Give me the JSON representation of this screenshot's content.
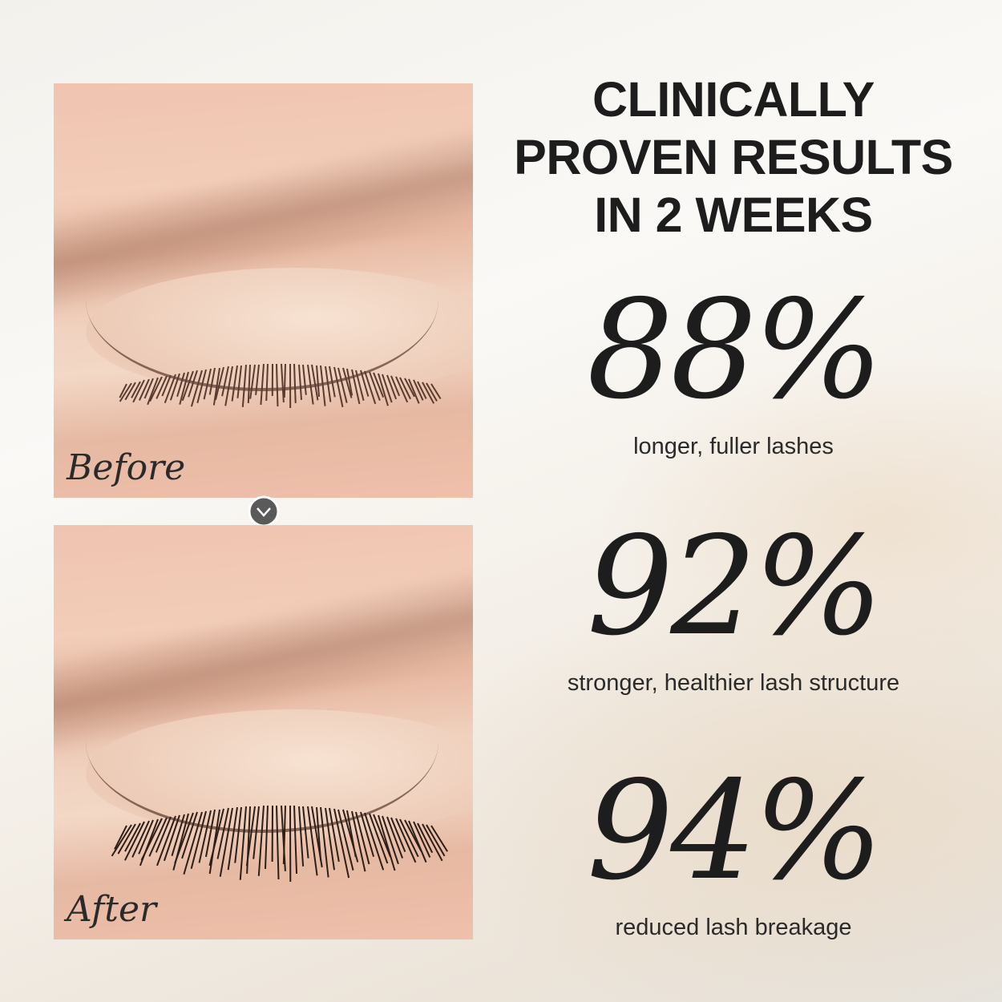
{
  "headline": {
    "line1": "CLINICALLY",
    "line2": "PROVEN RESULTS",
    "line3": "IN 2 WEEKS"
  },
  "panels": {
    "before_label": "Before",
    "after_label": "After",
    "arrow_icon": "chevron-down-icon"
  },
  "stats": [
    {
      "value": "88%",
      "caption": "longer, fuller lashes"
    },
    {
      "value": "92%",
      "caption": "stronger, healthier lash structure"
    },
    {
      "value": "94%",
      "caption": "reduced lash breakage"
    }
  ],
  "colors": {
    "text": "#1d1d1d",
    "arrow_circle": "#5a5a5a",
    "skin": "#f0c4b0"
  }
}
